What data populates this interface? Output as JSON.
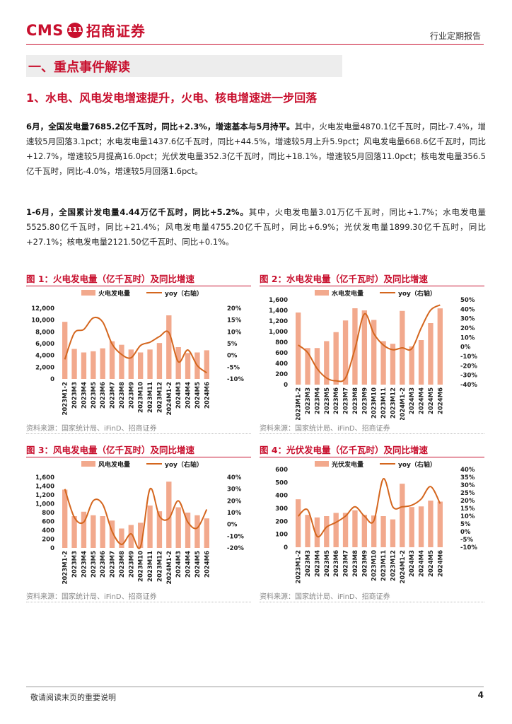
{
  "header": {
    "logo_text": "CMS",
    "logo_badge": "111",
    "logo_cn": "招商证券",
    "report_type": "行业定期报告"
  },
  "section": {
    "title": "一、重点事件解读",
    "subtitle": "1、水电、风电发电增速提升，火电、核电增速进一步回落"
  },
  "paragraphs": [
    {
      "lead": "6月，全国发电量7685.2亿千瓦时，同比+2.3%，增速基本与5月持平。",
      "body": "其中，火电发电量4870.1亿千瓦时，同比-7.4%，增速较5月回落3.1pct；水电发电量1437.6亿千瓦时，同比+44.5%，增速较5月上升5.9pct；风电发电量668.6亿千瓦时，同比+12.7%，增速较5月提高16.0pct；光伏发电量352.3亿千瓦时，同比+18.1%，增速较5月回落11.0pct；核电发电量356.5亿千瓦时，同比-4.0%，增速较5月回落1.6pct。"
    },
    {
      "lead": "1-6月，全国累计发电量4.44万亿千瓦时，同比+5.2%。",
      "body": "其中，火电发电量3.01万亿千瓦时，同比+1.7%；水电发电量5525.80亿千瓦时，同比+21.4%；风电发电量4755.20亿千瓦时，同比+6.9%；光伏发电量1899.30亿千瓦时，同比+27.1%；核电发电量2121.50亿千瓦时、同比+0.1%。"
    }
  ],
  "chart_data": [
    {
      "type": "bar",
      "title": "图 1：火电发电量（亿千瓦时）及同比增速",
      "categories": [
        "2023M1-2",
        "2023M3",
        "2023M4",
        "2023M5",
        "2023M6",
        "2023M7",
        "2023M8",
        "2023M9",
        "2023M10",
        "2023M11",
        "2023M12",
        "2024M1-2",
        "2024M3",
        "2024M4",
        "2024M5",
        "2024M6"
      ],
      "series": [
        {
          "name": "火电发电量",
          "type": "bar",
          "axis": "left",
          "color": "#f2a98d",
          "values": [
            9700,
            5100,
            4500,
            4700,
            5200,
            6400,
            5800,
            5000,
            4500,
            5000,
            6100,
            10800,
            5400,
            4400,
            4500,
            4870
          ]
        },
        {
          "name": "yoy（右轴）",
          "type": "line",
          "axis": "right",
          "color": "#d4661e",
          "values": [
            -1.7,
            9.5,
            11.0,
            15.9,
            14.2,
            4.8,
            0.4,
            -1.0,
            4.2,
            5.6,
            8.0,
            9.7,
            -2.7,
            2.3,
            -4.3,
            -7.4
          ]
        }
      ],
      "left_ticks": [
        "0",
        "2,000",
        "4,000",
        "6,000",
        "8,000",
        "10,000",
        "12,000"
      ],
      "right_ticks": [
        "-10%",
        "-5%",
        "0%",
        "5%",
        "10%",
        "15%",
        "20%"
      ],
      "ylim": [
        0,
        12000
      ],
      "ylim_right": [
        -10,
        20
      ],
      "source": "资料来源：国家统计局、iFinD、招商证券"
    },
    {
      "type": "bar",
      "title": "图 2：水电发电量（亿千瓦时）及同比增速",
      "categories": [
        "2023M1-2",
        "2023M3",
        "2023M4",
        "2023M5",
        "2023M6",
        "2023M7",
        "2023M8",
        "2023M9",
        "2023M10",
        "2023M11",
        "2023M12",
        "2024M1-2",
        "2024M3",
        "2024M4",
        "2024M5",
        "2024M6"
      ],
      "series": [
        {
          "name": "水电发电量",
          "type": "bar",
          "axis": "left",
          "color": "#f2a98d",
          "values": [
            1360,
            690,
            690,
            820,
            990,
            1210,
            1440,
            1400,
            1220,
            820,
            770,
            1390,
            720,
            840,
            1160,
            1438
          ]
        },
        {
          "name": "yoy（右轴）",
          "type": "line",
          "axis": "right",
          "color": "#d4661e",
          "values": [
            2,
            -6,
            -23,
            -33,
            -36,
            -33,
            -2,
            35,
            14,
            2,
            -3,
            -1,
            -2,
            20,
            39,
            44.5
          ]
        }
      ],
      "left_ticks": [
        "0",
        "200",
        "400",
        "600",
        "800",
        "1,000",
        "1,200",
        "1,400",
        "1,600"
      ],
      "right_ticks": [
        "-40%",
        "-30%",
        "-20%",
        "-10%",
        "0%",
        "10%",
        "20%",
        "30%",
        "40%",
        "50%"
      ],
      "ylim": [
        0,
        1600
      ],
      "ylim_right": [
        -40,
        50
      ],
      "source": "资料来源：国家统计局、iFinD、招商证券"
    },
    {
      "type": "bar",
      "title": "图 3：风电发电量（亿千瓦时）及同比增速",
      "categories": [
        "2023M1-2",
        "2023M3",
        "2023M4",
        "2023M5",
        "2023M6",
        "2023M7",
        "2023M8",
        "2023M9",
        "2023M10",
        "2023M11",
        "2023M12",
        "2024M1-2",
        "2024M3",
        "2024M4",
        "2024M5",
        "2024M6"
      ],
      "series": [
        {
          "name": "风电发电量",
          "type": "bar",
          "axis": "left",
          "color": "#f2a98d",
          "values": [
            1320,
            720,
            820,
            740,
            720,
            620,
            440,
            520,
            570,
            960,
            830,
            1500,
            920,
            800,
            740,
            669
          ]
        },
        {
          "name": "yoy（右轴）",
          "type": "line",
          "axis": "right",
          "color": "#d4661e",
          "values": [
            30,
            6,
            2,
            20,
            17,
            -6,
            -17,
            -8,
            -19,
            30,
            7,
            5,
            20,
            2,
            -3,
            12.7
          ]
        }
      ],
      "left_ticks": [
        "0",
        "200",
        "400",
        "600",
        "800",
        "1,000",
        "1,200",
        "1,400",
        "1,600"
      ],
      "right_ticks": [
        "-20%",
        "-10%",
        "0%",
        "10%",
        "20%",
        "30%",
        "40%"
      ],
      "ylim": [
        0,
        1600
      ],
      "ylim_right": [
        -20,
        40
      ],
      "source": "资料来源：国家统计局、iFinD、招商证券"
    },
    {
      "type": "bar",
      "title": "图 4：光伏发电量（亿千瓦时）及同比增速",
      "categories": [
        "2023M1-2",
        "2023M3",
        "2023M4",
        "2023M5",
        "2023M6",
        "2023M7",
        "2023M8",
        "2023M9",
        "2023M10",
        "2023M11",
        "2023M12",
        "2024M1-2",
        "2024M3",
        "2024M4",
        "2024M5",
        "2024M6"
      ],
      "series": [
        {
          "name": "光伏发电量",
          "type": "bar",
          "axis": "left",
          "color": "#f2a98d",
          "values": [
            370,
            250,
            230,
            240,
            265,
            265,
            285,
            250,
            245,
            240,
            215,
            490,
            310,
            315,
            360,
            352
          ]
        },
        {
          "name": "yoy（右轴）",
          "type": "line",
          "axis": "right",
          "color": "#d4661e",
          "values": [
            10,
            14,
            -3,
            3,
            6,
            10,
            16,
            10,
            7,
            34,
            16,
            16,
            17,
            21,
            29,
            18.1
          ]
        }
      ],
      "left_ticks": [
        "0",
        "100",
        "200",
        "300",
        "400",
        "500",
        "600"
      ],
      "right_ticks": [
        "-10%",
        "-5%",
        "0%",
        "5%",
        "10%",
        "15%",
        "20%",
        "25%",
        "30%",
        "35%",
        "40%"
      ],
      "ylim": [
        0,
        600
      ],
      "ylim_right": [
        -10,
        40
      ],
      "source": "资料来源：国家统计局、iFinD、招商证券"
    }
  ],
  "footer": {
    "note": "敬请阅读末页的重要说明",
    "page": "4"
  }
}
